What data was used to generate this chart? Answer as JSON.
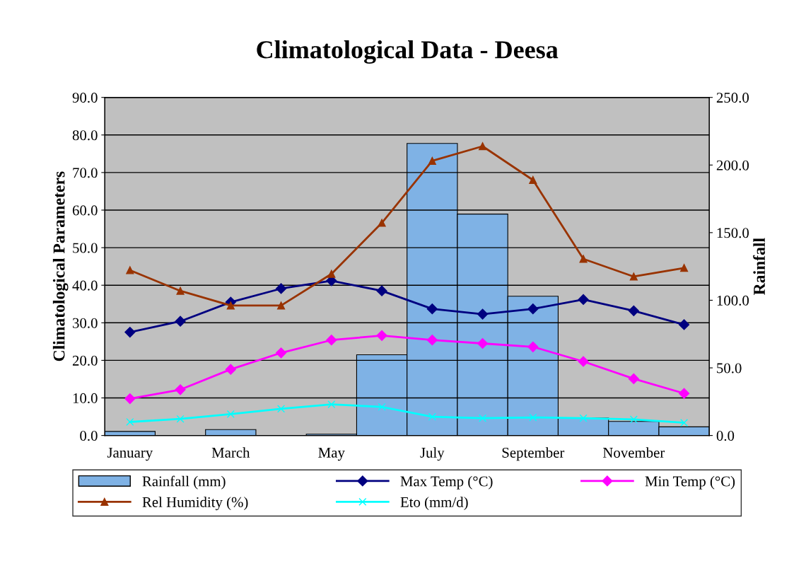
{
  "chart_data": {
    "type": "line",
    "title": "Climatological Data - Deesa",
    "ylabel": "Climatological Parameters",
    "y2label": "Rainfall",
    "categories": [
      "January",
      null,
      "March",
      null,
      "May",
      null,
      "July",
      null,
      "September",
      null,
      "November",
      null
    ],
    "series": [
      {
        "name": "Rainfall (mm)",
        "type": "bar",
        "axis": "y2",
        "color": "#7fb2e5",
        "values": [
          3.0,
          0,
          4.4,
          0,
          1.0,
          59.7,
          216,
          163.7,
          103,
          12.8,
          10.4,
          6.4
        ]
      },
      {
        "name": "Max Temp (°C)",
        "marker": "diamond",
        "color": "#000080",
        "values": [
          27.5,
          30.4,
          35.5,
          39.1,
          41.2,
          38.5,
          33.7,
          32.3,
          33.7,
          36.2,
          33.2,
          29.5
        ]
      },
      {
        "name": "Min Temp (°C)",
        "marker": "diamond",
        "color": "#ff00ff",
        "values": [
          9.8,
          12.2,
          17.6,
          22.0,
          25.4,
          26.6,
          25.4,
          24.5,
          23.6,
          19.7,
          15.1,
          11.2
        ]
      },
      {
        "name": "Rel Humidity (%)",
        "marker": "triangle",
        "color": "#993300",
        "values": [
          44.0,
          38.5,
          34.6,
          34.6,
          43.0,
          56.6,
          73.1,
          77.0,
          68.0,
          47.0,
          42.3,
          44.6
        ]
      },
      {
        "name": "Eto (mm/d)",
        "marker": "cross",
        "color": "#00ffff",
        "values": [
          3.6,
          4.4,
          5.7,
          7.1,
          8.3,
          7.6,
          5.0,
          4.6,
          4.8,
          4.6,
          4.3,
          3.4
        ]
      }
    ],
    "ylim": [
      0,
      90
    ],
    "yticks": [
      {
        "value": 0,
        "label": "0.0"
      },
      {
        "value": 10,
        "label": "10.0"
      },
      {
        "value": 20,
        "label": "20.0"
      },
      {
        "value": 30,
        "label": "30.0"
      },
      {
        "value": 40,
        "label": "40.0"
      },
      {
        "value": 50,
        "label": "50.0"
      },
      {
        "value": 60,
        "label": "60.0"
      },
      {
        "value": 70,
        "label": "70.0"
      },
      {
        "value": 80,
        "label": "80.0"
      },
      {
        "value": 90,
        "label": "90.0"
      }
    ],
    "y2lim": [
      0,
      250
    ],
    "y2ticks": [
      {
        "value": 0,
        "label": "0.0"
      },
      {
        "value": 50,
        "label": "50.0"
      },
      {
        "value": 100,
        "label": "100.0"
      },
      {
        "value": 150,
        "label": "150.0"
      },
      {
        "value": 200,
        "label": "200.0"
      },
      {
        "value": 250,
        "label": "250.0"
      }
    ],
    "grid": "y",
    "legend": "bottom"
  }
}
